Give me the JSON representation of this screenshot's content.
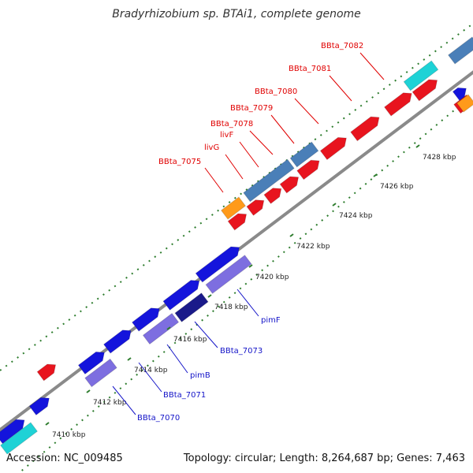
{
  "title": "Bradyrhizobium sp. BTAi1, complete genome",
  "footer": {
    "accession": "Accession: NC_009485",
    "summary": "Topology: circular; Length: 8,264,687 bp; Genes: 7,463"
  },
  "ticks": [
    "7410 kbp",
    "7412 kbp",
    "7414 kbp",
    "7416 kbp",
    "7418 kbp",
    "7420 kbp",
    "7422 kbp",
    "7424 kbp",
    "7426 kbp",
    "7428 kbp"
  ],
  "labels_top": [
    "BBta_7075",
    "livG",
    "livF",
    "BBta_7078",
    "BBta_7079",
    "BBta_7080",
    "BBta_7081",
    "BBta_7082"
  ],
  "labels_bottom": [
    "BBta_7070",
    "BBta_7071",
    "pimB",
    "BBta_7073",
    "pimF"
  ],
  "colors": {
    "backbone": "#8a8a8a",
    "dots": "#2e7d2e",
    "top_label": "#e00000",
    "bottom_label": "#1414c8",
    "red_gene": "#e8141e",
    "blue_gene": "#1414dc",
    "steel_gene": "#4a7fb8",
    "lavender_gene": "#7d6ee0",
    "navy_gene": "#1a1a8a",
    "orange_gene": "#ff9a1a",
    "cyan_gene": "#1ed2d6"
  }
}
